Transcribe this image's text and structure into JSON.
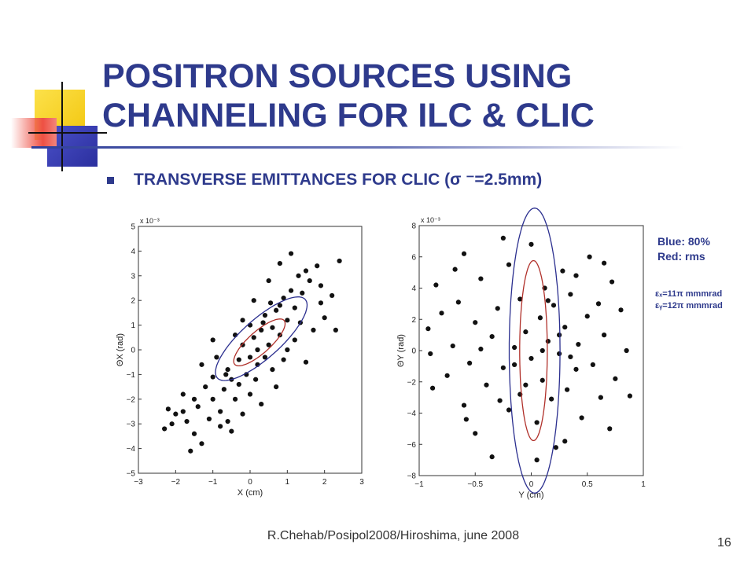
{
  "slide": {
    "title_line1": "POSITRON SOURCES USING",
    "title_line2": "CHANNELING FOR ILC & CLIC",
    "bullet": "TRANSVERSE EMITTANCES FOR CLIC (σ ⁻=2.5mm)",
    "legend_blue": "Blue: 80%",
    "legend_red": "Red: rms",
    "emittance_x": "εₓ=11π mmmrad",
    "emittance_y": "εᵧ=12π mmmrad",
    "footer": "R.Chehab/Posipol2008/Hiroshima, june 2008",
    "page_number": "16"
  },
  "colors": {
    "title": "#2e3a8c",
    "blue_ellipse": "#2b2f8f",
    "red_ellipse": "#b0302a",
    "points": "#111111",
    "deco_yellow": "#f7d21a",
    "deco_blue": "#3a3fb8",
    "deco_red": "#e8463a"
  },
  "chart_data": [
    {
      "type": "scatter",
      "xlabel": "X (cm)",
      "ylabel": "ΘX (rad)",
      "scale_note": "x 10⁻³",
      "xlim": [
        -3,
        3
      ],
      "ylim": [
        -5,
        5
      ],
      "xticks": [
        "−3",
        "−2",
        "−1",
        "0",
        "1",
        "2",
        "3"
      ],
      "yticks": [
        "5",
        "4",
        "3",
        "2",
        "1",
        "0",
        "−1",
        "−2",
        "−3",
        "−4",
        "−5"
      ],
      "ellipses": [
        {
          "name": "Blue: 80%",
          "cx": 0.3,
          "cy": 0.45,
          "a": 2.0,
          "b": 0.62,
          "angle_deg": 56
        },
        {
          "name": "Red: rms",
          "cx": 0.25,
          "cy": 0.3,
          "a": 1.12,
          "b": 0.35,
          "angle_deg": 56
        }
      ],
      "points": [
        [
          -2.2,
          -2.4
        ],
        [
          -2.1,
          -3.0
        ],
        [
          -2.0,
          -2.6
        ],
        [
          -1.8,
          -2.5
        ],
        [
          -1.7,
          -2.9
        ],
        [
          -1.5,
          -2.0
        ],
        [
          -1.5,
          -3.4
        ],
        [
          -1.6,
          -4.1
        ],
        [
          -1.4,
          -2.3
        ],
        [
          -1.3,
          -3.8
        ],
        [
          -1.2,
          -1.5
        ],
        [
          -1.1,
          -2.8
        ],
        [
          -1.0,
          -2.0
        ],
        [
          -1.0,
          -1.1
        ],
        [
          -0.9,
          -0.3
        ],
        [
          -0.8,
          -2.5
        ],
        [
          -0.7,
          -1.6
        ],
        [
          -0.6,
          -0.8
        ],
        [
          -0.5,
          -1.2
        ],
        [
          -0.4,
          -2.0
        ],
        [
          -0.3,
          -0.4
        ],
        [
          -0.2,
          0.2
        ],
        [
          -0.1,
          -1.0
        ],
        [
          0.0,
          -0.3
        ],
        [
          0.1,
          0.5
        ],
        [
          0.2,
          -0.6
        ],
        [
          0.3,
          0.8
        ],
        [
          0.4,
          1.4
        ],
        [
          0.5,
          0.2
        ],
        [
          0.6,
          0.9
        ],
        [
          0.7,
          1.6
        ],
        [
          0.8,
          0.6
        ],
        [
          0.9,
          2.1
        ],
        [
          1.0,
          1.2
        ],
        [
          1.1,
          2.4
        ],
        [
          1.2,
          1.7
        ],
        [
          1.3,
          3.0
        ],
        [
          1.4,
          2.3
        ],
        [
          1.5,
          3.2
        ],
        [
          1.6,
          2.8
        ],
        [
          1.8,
          3.4
        ],
        [
          1.9,
          2.6
        ],
        [
          2.0,
          1.3
        ],
        [
          2.2,
          2.2
        ],
        [
          2.3,
          0.8
        ],
        [
          2.4,
          3.6
        ],
        [
          -0.6,
          -2.9
        ],
        [
          -0.3,
          -1.4
        ],
        [
          0.0,
          -1.8
        ],
        [
          0.2,
          0.0
        ],
        [
          0.4,
          -0.3
        ],
        [
          0.6,
          -0.8
        ],
        [
          0.8,
          1.8
        ],
        [
          1.0,
          0.0
        ],
        [
          1.2,
          0.4
        ],
        [
          -0.2,
          1.2
        ],
        [
          0.1,
          2.0
        ],
        [
          0.5,
          2.8
        ],
        [
          0.8,
          3.5
        ],
        [
          1.1,
          3.9
        ],
        [
          -1.0,
          0.4
        ],
        [
          -1.3,
          -0.6
        ],
        [
          -0.8,
          -3.1
        ],
        [
          -0.5,
          -3.3
        ],
        [
          -0.2,
          -2.6
        ],
        [
          0.3,
          -2.2
        ],
        [
          0.7,
          -1.5
        ],
        [
          1.5,
          -0.5
        ],
        [
          1.7,
          0.8
        ],
        [
          1.9,
          1.9
        ],
        [
          -1.8,
          -1.8
        ],
        [
          -2.3,
          -3.2
        ],
        [
          0.9,
          -0.4
        ],
        [
          0.0,
          1.0
        ],
        [
          -0.4,
          0.6
        ],
        [
          0.35,
          1.1
        ],
        [
          0.15,
          -1.2
        ],
        [
          -0.65,
          -1.0
        ],
        [
          1.35,
          1.1
        ],
        [
          0.55,
          1.9
        ]
      ]
    },
    {
      "type": "scatter",
      "xlabel": "Y (cm)",
      "ylabel": "ΘY (rad)",
      "scale_note": "x 10⁻³",
      "xlim": [
        -1,
        1
      ],
      "ylim": [
        -8,
        8
      ],
      "xticks": [
        "−1",
        "−0.5",
        "0",
        "0.5",
        "1"
      ],
      "yticks": [
        "8",
        "6",
        "4",
        "2",
        "0",
        "−2",
        "−4",
        "−6",
        "−8"
      ],
      "ellipses": [
        {
          "name": "Blue: 80%",
          "cx": 0.03,
          "cy": 0.0,
          "a": 0.68,
          "b": 5.7,
          "angle_deg": 0
        },
        {
          "name": "Red: rms",
          "cx": 0.02,
          "cy": 0.0,
          "a": 0.37,
          "b": 3.6,
          "angle_deg": 0
        }
      ],
      "points": [
        [
          -0.85,
          4.2
        ],
        [
          -0.8,
          2.4
        ],
        [
          -0.75,
          -1.6
        ],
        [
          -0.7,
          0.3
        ],
        [
          -0.65,
          3.1
        ],
        [
          -0.6,
          -3.5
        ],
        [
          -0.6,
          6.2
        ],
        [
          -0.55,
          -0.8
        ],
        [
          -0.5,
          1.8
        ],
        [
          -0.5,
          -5.3
        ],
        [
          -0.45,
          4.6
        ],
        [
          -0.4,
          -2.2
        ],
        [
          -0.35,
          0.9
        ],
        [
          -0.35,
          -6.8
        ],
        [
          -0.3,
          2.7
        ],
        [
          -0.25,
          -1.1
        ],
        [
          -0.2,
          5.5
        ],
        [
          -0.2,
          -3.8
        ],
        [
          -0.15,
          0.2
        ],
        [
          -0.1,
          3.3
        ],
        [
          -0.1,
          -2.8
        ],
        [
          -0.05,
          1.2
        ],
        [
          0.0,
          -0.5
        ],
        [
          0.0,
          6.8
        ],
        [
          0.05,
          -4.6
        ],
        [
          0.08,
          2.1
        ],
        [
          0.1,
          -1.9
        ],
        [
          0.12,
          4.0
        ],
        [
          0.15,
          0.6
        ],
        [
          0.18,
          -3.1
        ],
        [
          0.2,
          2.9
        ],
        [
          0.22,
          -6.2
        ],
        [
          0.25,
          -0.2
        ],
        [
          0.28,
          5.1
        ],
        [
          0.3,
          1.5
        ],
        [
          0.32,
          -2.5
        ],
        [
          0.35,
          3.6
        ],
        [
          0.4,
          -1.2
        ],
        [
          0.42,
          0.4
        ],
        [
          0.45,
          -4.3
        ],
        [
          0.5,
          2.2
        ],
        [
          0.52,
          6.0
        ],
        [
          0.55,
          -0.9
        ],
        [
          0.6,
          3.0
        ],
        [
          0.62,
          -3.0
        ],
        [
          0.65,
          1.0
        ],
        [
          0.7,
          -5.0
        ],
        [
          0.72,
          4.4
        ],
        [
          0.75,
          -1.8
        ],
        [
          0.8,
          2.6
        ],
        [
          0.85,
          0.0
        ],
        [
          0.88,
          -2.9
        ],
        [
          -0.9,
          -0.2
        ],
        [
          -0.92,
          1.4
        ],
        [
          -0.88,
          -2.4
        ],
        [
          0.05,
          -7.0
        ],
        [
          -0.25,
          7.2
        ],
        [
          0.3,
          -5.8
        ],
        [
          0.65,
          5.6
        ],
        [
          -0.68,
          5.2
        ],
        [
          -0.58,
          -4.4
        ],
        [
          0.15,
          3.2
        ],
        [
          -0.05,
          -2.2
        ],
        [
          0.25,
          1.0
        ],
        [
          -0.28,
          -3.2
        ],
        [
          0.4,
          4.8
        ],
        [
          0.1,
          0.0
        ],
        [
          -0.15,
          -0.9
        ],
        [
          0.35,
          -0.4
        ],
        [
          -0.45,
          0.1
        ]
      ]
    }
  ]
}
